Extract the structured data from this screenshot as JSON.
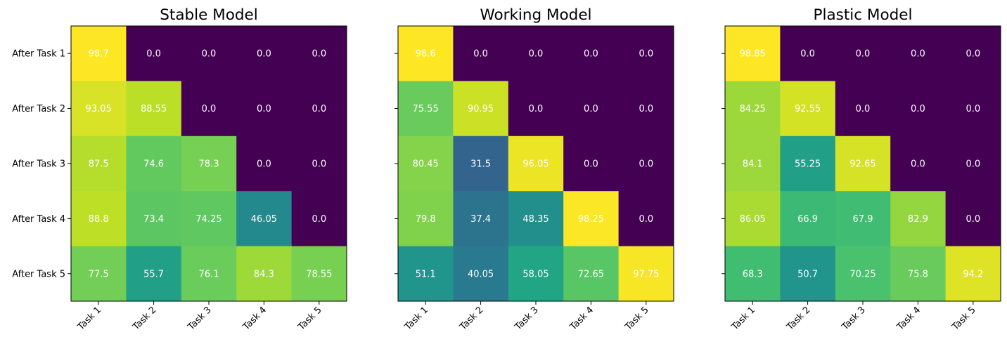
{
  "chart_data": [
    {
      "type": "heatmap",
      "title": "Stable Model",
      "rows": [
        "After Task 1",
        "After Task 2",
        "After Task 3",
        "After Task 4",
        "After Task 5"
      ],
      "columns": [
        "Task 1",
        "Task 2",
        "Task 3",
        "Task 4",
        "Task 5"
      ],
      "values": [
        [
          98.7,
          0.0,
          0.0,
          0.0,
          0.0
        ],
        [
          93.05,
          88.55,
          0.0,
          0.0,
          0.0
        ],
        [
          87.5,
          74.6,
          78.3,
          0.0,
          0.0
        ],
        [
          88.8,
          73.4,
          74.25,
          46.05,
          0.0
        ],
        [
          77.5,
          55.7,
          76.1,
          84.3,
          78.55
        ]
      ],
      "labels": [
        [
          "98.7",
          "0.0",
          "0.0",
          "0.0",
          "0.0"
        ],
        [
          "93.05",
          "88.55",
          "0.0",
          "0.0",
          "0.0"
        ],
        [
          "87.5",
          "74.6",
          "78.3",
          "0.0",
          "0.0"
        ],
        [
          "88.8",
          "73.4",
          "74.25",
          "46.05",
          "0.0"
        ],
        [
          "77.5",
          "55.7",
          "76.1",
          "84.3",
          "78.55"
        ]
      ],
      "colormap": "viridis",
      "show_row_labels": true
    },
    {
      "type": "heatmap",
      "title": "Working Model",
      "rows": [
        "After Task 1",
        "After Task 2",
        "After Task 3",
        "After Task 4",
        "After Task 5"
      ],
      "columns": [
        "Task 1",
        "Task 2",
        "Task 3",
        "Task 4",
        "Task 5"
      ],
      "values": [
        [
          98.6,
          0.0,
          0.0,
          0.0,
          0.0
        ],
        [
          75.55,
          90.95,
          0.0,
          0.0,
          0.0
        ],
        [
          80.45,
          31.5,
          96.05,
          0.0,
          0.0
        ],
        [
          79.8,
          37.4,
          48.35,
          98.25,
          0.0
        ],
        [
          51.1,
          40.05,
          58.05,
          72.65,
          97.75
        ]
      ],
      "labels": [
        [
          "98.6",
          "0.0",
          "0.0",
          "0.0",
          "0.0"
        ],
        [
          "75.55",
          "90.95",
          "0.0",
          "0.0",
          "0.0"
        ],
        [
          "80.45",
          "31.5",
          "96.05",
          "0.0",
          "0.0"
        ],
        [
          "79.8",
          "37.4",
          "48.35",
          "98.25",
          "0.0"
        ],
        [
          "51.1",
          "40.05",
          "58.05",
          "72.65",
          "97.75"
        ]
      ],
      "colormap": "viridis",
      "show_row_labels": false
    },
    {
      "type": "heatmap",
      "title": "Plastic Model",
      "rows": [
        "After Task 1",
        "After Task 2",
        "After Task 3",
        "After Task 4",
        "After Task 5"
      ],
      "columns": [
        "Task 1",
        "Task 2",
        "Task 3",
        "Task 4",
        "Task 5"
      ],
      "values": [
        [
          98.85,
          0.0,
          0.0,
          0.0,
          0.0
        ],
        [
          84.25,
          92.55,
          0.0,
          0.0,
          0.0
        ],
        [
          84.1,
          55.25,
          92.65,
          0.0,
          0.0
        ],
        [
          86.05,
          66.9,
          67.9,
          82.9,
          0.0
        ],
        [
          68.3,
          50.7,
          70.25,
          75.8,
          94.2
        ]
      ],
      "labels": [
        [
          "98.85",
          "0.0",
          "0.0",
          "0.0",
          "0.0"
        ],
        [
          "84.25",
          "92.55",
          "0.0",
          "0.0",
          "0.0"
        ],
        [
          "84.1",
          "55.25",
          "92.65",
          "0.0",
          "0.0"
        ],
        [
          "86.05",
          "66.9",
          "67.9",
          "82.9",
          "0.0"
        ],
        [
          "68.3",
          "50.7",
          "70.25",
          "75.8",
          "94.2"
        ]
      ],
      "colormap": "viridis",
      "show_row_labels": false
    }
  ],
  "colors": {
    "cell_text": "#ffffff",
    "axis": "#000000"
  }
}
